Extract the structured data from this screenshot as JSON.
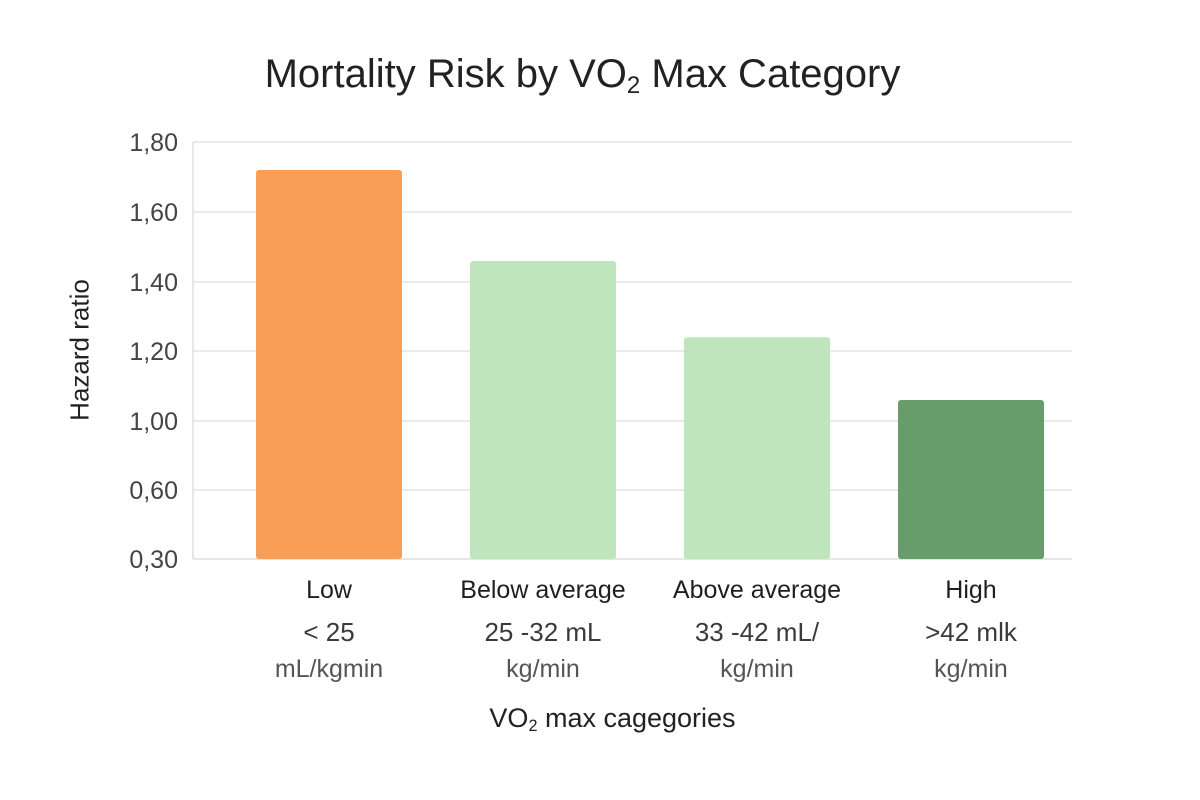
{
  "chart_data": {
    "type": "bar",
    "title": {
      "prefix": "Mortality Risk by VO",
      "sub": "2",
      "suffix": " Max Category"
    },
    "ylabel": "Hazard ratio",
    "xlabel": {
      "prefix": "VO",
      "sub": "2",
      "suffix": " max cagegories"
    },
    "y_ticks": [
      {
        "label": "1,80",
        "value": 1.8
      },
      {
        "label": "1,60",
        "value": 1.6
      },
      {
        "label": "1,40",
        "value": 1.4
      },
      {
        "label": "1,20",
        "value": 1.2
      },
      {
        "label": "1,00",
        "value": 1.0
      },
      {
        "label": "0,60",
        "value": 0.6
      },
      {
        "label": "0,30",
        "value": 0.3
      }
    ],
    "categories": [
      {
        "name": "Low",
        "range": "< 25",
        "unit": "mL/kgmin"
      },
      {
        "name": "Below average",
        "range": "25 -32 mL",
        "unit": "kg/min"
      },
      {
        "name": "Above average",
        "range": "33 -42 mL/",
        "unit": "kg/min"
      },
      {
        "name": "High",
        "range": ">42 mlk",
        "unit": "kg/min"
      }
    ],
    "values": [
      1.72,
      1.46,
      1.24,
      1.06
    ],
    "colors": [
      "#f89e56",
      "#bfe5bd",
      "#bfe5bd",
      "#699c6b"
    ],
    "grid": true,
    "gridline_color": "#dddddd",
    "legend": "none"
  }
}
